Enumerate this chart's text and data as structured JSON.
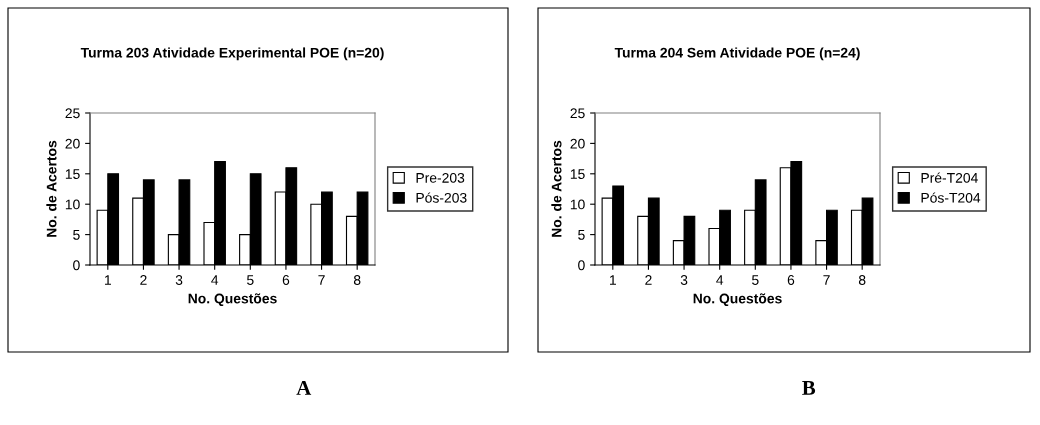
{
  "chart_data": [
    {
      "type": "bar",
      "title": "Turma 203 Atividade Experimental POE (n=20)",
      "xlabel": "No. Questões",
      "ylabel": "No. de Acertos",
      "categories": [
        "1",
        "2",
        "3",
        "4",
        "5",
        "6",
        "7",
        "8"
      ],
      "series": [
        {
          "name": "Pre-203",
          "color": "#ffffff",
          "values": [
            9,
            11,
            5,
            7,
            5,
            12,
            10,
            8
          ]
        },
        {
          "name": "Pós-203",
          "color": "#000000",
          "values": [
            15,
            14,
            14,
            17,
            15,
            16,
            12,
            12
          ]
        }
      ],
      "ylim": [
        0,
        25
      ],
      "yticks": [
        0,
        5,
        10,
        15,
        20,
        25
      ],
      "grid": false,
      "legend": "right",
      "annotations": [
        "A"
      ]
    },
    {
      "type": "bar",
      "title": "Turma 204 Sem Atividade POE (n=24)",
      "xlabel": "No. Questões",
      "ylabel": "No. de Acertos",
      "categories": [
        "1",
        "2",
        "3",
        "4",
        "5",
        "6",
        "7",
        "8"
      ],
      "series": [
        {
          "name": "Pré-T204",
          "color": "#ffffff",
          "values": [
            11,
            8,
            4,
            6,
            9,
            16,
            4,
            9
          ]
        },
        {
          "name": "Pós-T204",
          "color": "#000000",
          "values": [
            13,
            11,
            8,
            9,
            14,
            17,
            9,
            11
          ]
        }
      ],
      "ylim": [
        0,
        25
      ],
      "yticks": [
        0,
        5,
        10,
        15,
        20,
        25
      ],
      "grid": false,
      "legend": "right",
      "annotations": [
        "B"
      ]
    }
  ]
}
